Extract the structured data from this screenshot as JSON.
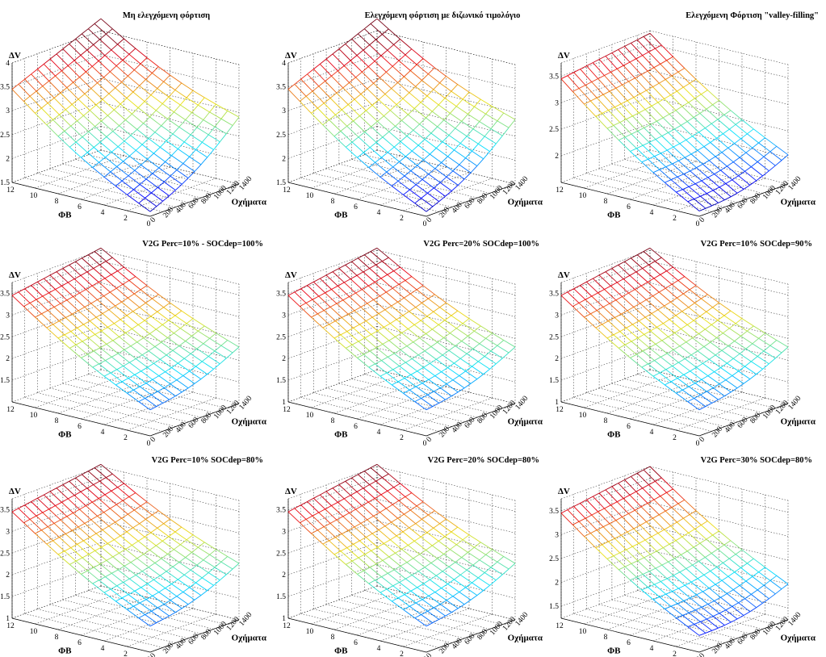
{
  "chart_data": [
    {
      "type": "surface",
      "title": "Μη ελεγχόμενη φόρτιση",
      "xlabel": "ΦΒ",
      "ylabel": "Οχήματα",
      "zlabel": "ΔV",
      "x_ticks": [
        "0",
        "2",
        "4",
        "6",
        "8",
        "10",
        "12"
      ],
      "y_ticks": [
        "0",
        "200",
        "400",
        "600",
        "800",
        "1000",
        "1200",
        "1400"
      ],
      "z_ticks": [
        "1.5",
        "2",
        "2.5",
        "3",
        "3.5",
        "4"
      ],
      "zlim": [
        1.5,
        4.0
      ],
      "surface": {
        "corner_pv0_ev0": 1.6,
        "corner_pv12_ev0": 3.45,
        "corner_pv0_ev1400": 2.9,
        "corner_pv12_ev1400": 4.25,
        "curvature": 0.25
      }
    },
    {
      "type": "surface",
      "title": "Ελεγχόμενη φόρτιση με διζωνικό τιμολόγιο",
      "xlabel": "ΦΒ",
      "ylabel": "Οχήματα",
      "zlabel": "ΔV",
      "x_ticks": [
        "0",
        "2",
        "4",
        "6",
        "8",
        "10",
        "12"
      ],
      "y_ticks": [
        "0",
        "200",
        "400",
        "600",
        "800",
        "1000",
        "1200",
        "1400"
      ],
      "z_ticks": [
        "1.5",
        "2",
        "2.5",
        "3",
        "3.5",
        "4"
      ],
      "zlim": [
        1.5,
        4.0
      ],
      "surface": {
        "corner_pv0_ev0": 1.6,
        "corner_pv12_ev0": 3.45,
        "corner_pv0_ev1400": 2.85,
        "corner_pv12_ev1400": 4.25,
        "curvature": 0.25
      }
    },
    {
      "type": "surface",
      "title": "Ελεγχόμενη Φόρτιση \"valley-filling\"",
      "xlabel": "ΦΒ",
      "ylabel": "Οχήματα",
      "zlabel": "ΔV",
      "x_ticks": [
        "0",
        "2",
        "4",
        "6",
        "8",
        "10",
        "12"
      ],
      "y_ticks": [
        "0",
        "200",
        "400",
        "600",
        "800",
        "1000",
        "1200",
        "1400"
      ],
      "z_ticks": [
        "2",
        "2.5",
        "3",
        "3.5"
      ],
      "zlim": [
        1.5,
        3.75
      ],
      "surface": {
        "corner_pv0_ev0": 1.6,
        "corner_pv12_ev0": 3.45,
        "corner_pv0_ev1400": 2.05,
        "corner_pv12_ev1400": 3.7,
        "curvature": 0.2
      }
    },
    {
      "type": "surface",
      "title": "V2G Perc=10% - SOCdep=100%",
      "xlabel": "ΦΒ",
      "ylabel": "Οχήματα",
      "zlabel": "ΔV",
      "x_ticks": [
        "0",
        "2",
        "4",
        "6",
        "8",
        "10",
        "12"
      ],
      "y_ticks": [
        "0",
        "200",
        "400",
        "600",
        "800",
        "1000",
        "1200",
        "1400"
      ],
      "z_ticks": [
        "1.5",
        "2",
        "2.5",
        "3",
        "3.5"
      ],
      "zlim": [
        1.0,
        3.75
      ],
      "surface": {
        "corner_pv0_ev0": 1.6,
        "corner_pv12_ev0": 3.45,
        "corner_pv0_ev1400": 2.3,
        "corner_pv12_ev1400": 3.8,
        "curvature": 0.2
      }
    },
    {
      "type": "surface",
      "title": "V2G Perc=20% SOCdep=100%",
      "xlabel": "ΦΒ",
      "ylabel": "Οχήματα",
      "zlabel": "ΔV",
      "x_ticks": [
        "0",
        "2",
        "4",
        "6",
        "8",
        "10",
        "12"
      ],
      "y_ticks": [
        "0",
        "200",
        "400",
        "600",
        "800",
        "1000",
        "1200",
        "1400"
      ],
      "z_ticks": [
        "1",
        "1.5",
        "2",
        "2.5",
        "3",
        "3.5"
      ],
      "zlim": [
        1.0,
        3.75
      ],
      "surface": {
        "corner_pv0_ev0": 1.6,
        "corner_pv12_ev0": 3.45,
        "corner_pv0_ev1400": 2.3,
        "corner_pv12_ev1400": 3.8,
        "curvature": 0.2
      }
    },
    {
      "type": "surface",
      "title": "V2G Perc=10% SOCdep=90%",
      "xlabel": "ΦΒ",
      "ylabel": "Οχήματα",
      "zlabel": "ΔV",
      "x_ticks": [
        "0",
        "2",
        "4",
        "6",
        "8",
        "10",
        "12"
      ],
      "y_ticks": [
        "0",
        "200",
        "400",
        "600",
        "800",
        "1000",
        "1200",
        "1400"
      ],
      "z_ticks": [
        "1",
        "1.5",
        "2",
        "2.5",
        "3",
        "3.5"
      ],
      "zlim": [
        1.0,
        3.75
      ],
      "surface": {
        "corner_pv0_ev0": 1.6,
        "corner_pv12_ev0": 3.45,
        "corner_pv0_ev1400": 2.3,
        "corner_pv12_ev1400": 3.8,
        "curvature": 0.2
      }
    },
    {
      "type": "surface",
      "title": "V2G Perc=10% SOCdep=80%",
      "xlabel": "ΦΒ",
      "ylabel": "Οχήματα",
      "zlabel": "ΔV",
      "x_ticks": [
        "0",
        "2",
        "4",
        "6",
        "8",
        "10",
        "12"
      ],
      "y_ticks": [
        "0",
        "200",
        "400",
        "600",
        "800",
        "1000",
        "1200",
        "1400"
      ],
      "z_ticks": [
        "1",
        "1.5",
        "2",
        "2.5",
        "3",
        "3.5"
      ],
      "zlim": [
        1.0,
        3.75
      ],
      "surface": {
        "corner_pv0_ev0": 1.6,
        "corner_pv12_ev0": 3.45,
        "corner_pv0_ev1400": 2.3,
        "corner_pv12_ev1400": 3.8,
        "curvature": 0.2
      }
    },
    {
      "type": "surface",
      "title": "V2G Perc=20% SOCdep=80%",
      "xlabel": "ΦΒ",
      "ylabel": "Οχήματα",
      "zlabel": "ΔV",
      "x_ticks": [
        "0",
        "2",
        "4",
        "6",
        "8",
        "10",
        "12"
      ],
      "y_ticks": [
        "0",
        "200",
        "400",
        "600",
        "800",
        "1000",
        "1200",
        "1400"
      ],
      "z_ticks": [
        "1",
        "1.5",
        "2",
        "2.5",
        "3",
        "3.5"
      ],
      "zlim": [
        1.0,
        3.75
      ],
      "surface": {
        "corner_pv0_ev0": 1.6,
        "corner_pv12_ev0": 3.45,
        "corner_pv0_ev1400": 2.3,
        "corner_pv12_ev1400": 3.8,
        "curvature": 0.2
      }
    },
    {
      "type": "surface",
      "title": "V2G Perc=30% SOCdep=80%",
      "xlabel": "ΦΒ",
      "ylabel": "Οχήματα",
      "zlabel": "ΔV",
      "x_ticks": [
        "0",
        "2",
        "4",
        "6",
        "8",
        "10",
        "12"
      ],
      "y_ticks": [
        "0",
        "200",
        "400",
        "600",
        "800",
        "1000",
        "1200",
        "1400"
      ],
      "z_ticks": [
        "1.5",
        "2",
        "2.5",
        "3",
        "3.5"
      ],
      "zlim": [
        1.25,
        3.75
      ],
      "surface": {
        "corner_pv0_ev0": 1.6,
        "corner_pv12_ev0": 3.45,
        "corner_pv0_ev1400": 2.0,
        "corner_pv12_ev1400": 3.75,
        "curvature": 0.2
      }
    }
  ]
}
